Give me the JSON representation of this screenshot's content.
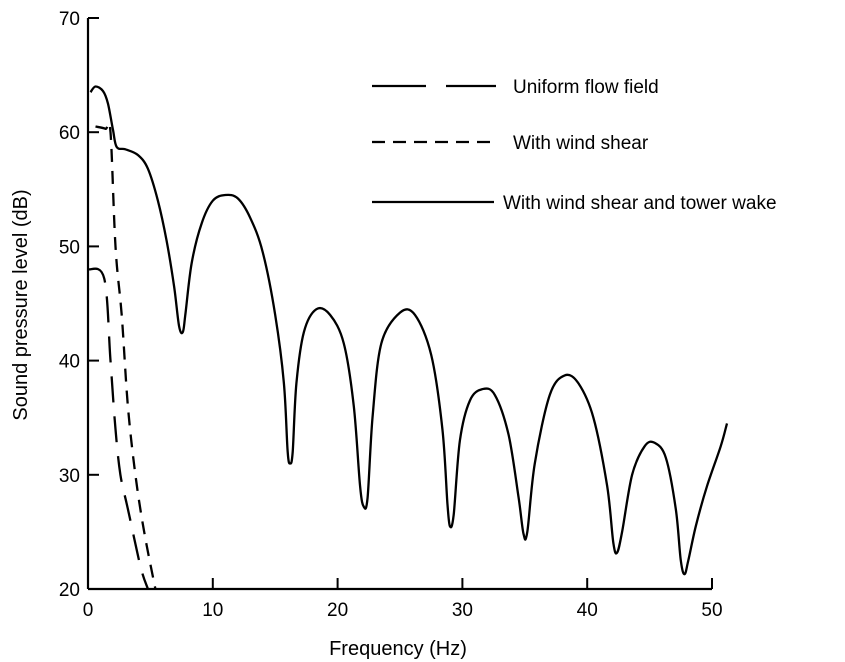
{
  "chart_data": {
    "type": "line",
    "title": "",
    "xlabel": "Frequency  (Hz)",
    "ylabel": "Sound pressure level (dB)",
    "xlim": [
      0,
      50
    ],
    "ylim": [
      20,
      70
    ],
    "x_ticks": [
      0,
      10,
      20,
      30,
      40,
      50
    ],
    "y_ticks": [
      20,
      30,
      40,
      50,
      60,
      70
    ],
    "grid": false,
    "legend_position": "top-right",
    "series": [
      {
        "name": "Uniform flow field",
        "style": "long-dash",
        "points": [
          [
            0,
            48
          ],
          [
            1.3,
            47.2
          ],
          [
            1.8,
            40
          ],
          [
            2.2,
            34
          ],
          [
            2.6,
            30
          ],
          [
            3.2,
            27
          ],
          [
            4.2,
            22
          ],
          [
            4.8,
            20
          ]
        ]
      },
      {
        "name": "With wind shear",
        "style": "short-dash",
        "points": [
          [
            0.6,
            60.5
          ],
          [
            1.4,
            60.3
          ],
          [
            1.8,
            60
          ],
          [
            2.2,
            50
          ],
          [
            2.7,
            44
          ],
          [
            3.2,
            36
          ],
          [
            3.8,
            30
          ],
          [
            4.5,
            25
          ],
          [
            5.4,
            20
          ]
        ]
      },
      {
        "name": "With wind shear and tower wake",
        "style": "solid",
        "points": [
          [
            0.2,
            63.5
          ],
          [
            0.6,
            64
          ],
          [
            1.2,
            63.6
          ],
          [
            1.6,
            62.5
          ],
          [
            2.0,
            60.2
          ],
          [
            2.3,
            58.7
          ],
          [
            3.0,
            58.5
          ],
          [
            4.0,
            58
          ],
          [
            4.8,
            56.8
          ],
          [
            5.6,
            54
          ],
          [
            6.3,
            50.5
          ],
          [
            6.9,
            46.5
          ],
          [
            7.3,
            43
          ],
          [
            7.6,
            42.5
          ],
          [
            7.8,
            44
          ],
          [
            8.3,
            48.5
          ],
          [
            9.1,
            52
          ],
          [
            10.0,
            54
          ],
          [
            11.0,
            54.5
          ],
          [
            12.0,
            54.2
          ],
          [
            13.0,
            52.5
          ],
          [
            14.0,
            49.5
          ],
          [
            15.0,
            44
          ],
          [
            15.7,
            38
          ],
          [
            16.0,
            32
          ],
          [
            16.2,
            31
          ],
          [
            16.4,
            32
          ],
          [
            16.7,
            38
          ],
          [
            17.3,
            42.5
          ],
          [
            18.3,
            44.5
          ],
          [
            19.4,
            44
          ],
          [
            20.5,
            41.5
          ],
          [
            21.3,
            36
          ],
          [
            21.8,
            29
          ],
          [
            22.1,
            27.2
          ],
          [
            22.4,
            28
          ],
          [
            22.8,
            35
          ],
          [
            23.5,
            41.5
          ],
          [
            25.0,
            44.2
          ],
          [
            26.2,
            44
          ],
          [
            27.5,
            40.5
          ],
          [
            28.4,
            34
          ],
          [
            28.8,
            27.5
          ],
          [
            29.0,
            25.5
          ],
          [
            29.3,
            26.5
          ],
          [
            29.8,
            33
          ],
          [
            30.6,
            36.5
          ],
          [
            31.6,
            37.5
          ],
          [
            32.6,
            37
          ],
          [
            33.7,
            33.5
          ],
          [
            34.5,
            28
          ],
          [
            34.9,
            24.8
          ],
          [
            35.2,
            25
          ],
          [
            35.8,
            31
          ],
          [
            37.0,
            37
          ],
          [
            38.2,
            38.7
          ],
          [
            39.3,
            38
          ],
          [
            40.5,
            35
          ],
          [
            41.6,
            29
          ],
          [
            42.1,
            24
          ],
          [
            42.4,
            23.2
          ],
          [
            42.8,
            25
          ],
          [
            43.6,
            30
          ],
          [
            44.6,
            32.5
          ],
          [
            45.4,
            32.8
          ],
          [
            46.3,
            31.5
          ],
          [
            47.1,
            27
          ],
          [
            47.5,
            22.5
          ],
          [
            47.8,
            21.3
          ],
          [
            48.1,
            22.5
          ],
          [
            48.7,
            25.5
          ],
          [
            49.6,
            29
          ],
          [
            50.7,
            32.5
          ],
          [
            51.2,
            34.5
          ]
        ]
      }
    ]
  }
}
